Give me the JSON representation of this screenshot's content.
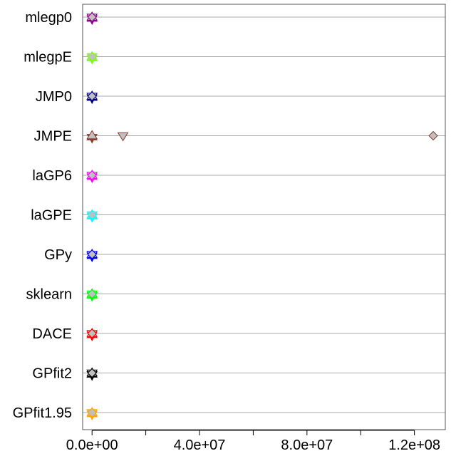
{
  "chart_data": {
    "type": "scatter",
    "title": "",
    "xlabel": "",
    "ylabel": "",
    "xlim": [
      -3500000,
      131500000
    ],
    "x_ticks": [
      0,
      20000000,
      40000000,
      60000000,
      80000000,
      100000000,
      120000000
    ],
    "x_tick_labels": [
      "0.0e+00",
      "4.0e+07",
      "8.0e+07",
      "1.2e+08"
    ],
    "x_tick_label_values": [
      0,
      40000000,
      80000000,
      120000000
    ],
    "grid": "horizontal",
    "categories": [
      "mlegp0",
      "mlegpE",
      "JMP0",
      "JMPE",
      "laGP6",
      "laGPE",
      "GPy",
      "sklearn",
      "DACE",
      "GPfit2",
      "GPfit1.95"
    ],
    "series": [
      {
        "category": "mlegp0",
        "color": "#8B008B",
        "points": [
          {
            "x": 0,
            "marker": "star"
          },
          {
            "x": 0,
            "marker": "triangle-up"
          },
          {
            "x": 0,
            "marker": "triangle-down"
          },
          {
            "x": 0,
            "marker": "diamond"
          }
        ]
      },
      {
        "category": "mlegpE",
        "color": "#7FFF00",
        "points": [
          {
            "x": 0,
            "marker": "star"
          },
          {
            "x": 0,
            "marker": "triangle-up"
          },
          {
            "x": 0,
            "marker": "triangle-down"
          },
          {
            "x": 0,
            "marker": "diamond"
          }
        ]
      },
      {
        "category": "JMP0",
        "color": "#000080",
        "points": [
          {
            "x": 0,
            "marker": "star"
          },
          {
            "x": 0,
            "marker": "triangle-up"
          },
          {
            "x": 0,
            "marker": "triangle-down"
          },
          {
            "x": 0,
            "marker": "diamond"
          }
        ]
      },
      {
        "category": "JMPE",
        "color": "#8B3A2E",
        "points": [
          {
            "x": 0,
            "marker": "star"
          },
          {
            "x": 0,
            "marker": "triangle-up"
          },
          {
            "x": 11500000,
            "marker": "triangle-down"
          },
          {
            "x": 127000000,
            "marker": "diamond"
          }
        ]
      },
      {
        "category": "laGP6",
        "color": "#FF00FF",
        "points": [
          {
            "x": 0,
            "marker": "star"
          },
          {
            "x": 0,
            "marker": "triangle-up"
          },
          {
            "x": 0,
            "marker": "triangle-down"
          },
          {
            "x": 0,
            "marker": "diamond"
          }
        ]
      },
      {
        "category": "laGPE",
        "color": "#00FFFF",
        "points": [
          {
            "x": 0,
            "marker": "star"
          },
          {
            "x": 0,
            "marker": "triangle-up"
          },
          {
            "x": 0,
            "marker": "triangle-down"
          },
          {
            "x": 0,
            "marker": "diamond"
          }
        ]
      },
      {
        "category": "GPy",
        "color": "#0000FF",
        "points": [
          {
            "x": 0,
            "marker": "star"
          },
          {
            "x": 0,
            "marker": "triangle-up"
          },
          {
            "x": 0,
            "marker": "triangle-down"
          },
          {
            "x": 0,
            "marker": "diamond"
          }
        ]
      },
      {
        "category": "sklearn",
        "color": "#00FF00",
        "points": [
          {
            "x": 0,
            "marker": "star"
          },
          {
            "x": 0,
            "marker": "triangle-up"
          },
          {
            "x": 0,
            "marker": "triangle-down"
          },
          {
            "x": 0,
            "marker": "diamond"
          }
        ]
      },
      {
        "category": "DACE",
        "color": "#FF0000",
        "points": [
          {
            "x": 0,
            "marker": "star"
          },
          {
            "x": 0,
            "marker": "triangle-up"
          },
          {
            "x": 0,
            "marker": "triangle-down"
          },
          {
            "x": 0,
            "marker": "diamond"
          }
        ]
      },
      {
        "category": "GPfit2",
        "color": "#000000",
        "points": [
          {
            "x": 0,
            "marker": "star"
          },
          {
            "x": 0,
            "marker": "triangle-up"
          },
          {
            "x": 0,
            "marker": "triangle-down"
          },
          {
            "x": 0,
            "marker": "diamond"
          }
        ]
      },
      {
        "category": "GPfit1.95",
        "color": "#FFA500",
        "points": [
          {
            "x": 0,
            "marker": "star"
          },
          {
            "x": 0,
            "marker": "triangle-up"
          },
          {
            "x": 0,
            "marker": "triangle-down"
          },
          {
            "x": 0,
            "marker": "diamond"
          }
        ]
      }
    ],
    "marker_fill": "#C0C0C0",
    "grid_color": "#AAAAAA"
  }
}
